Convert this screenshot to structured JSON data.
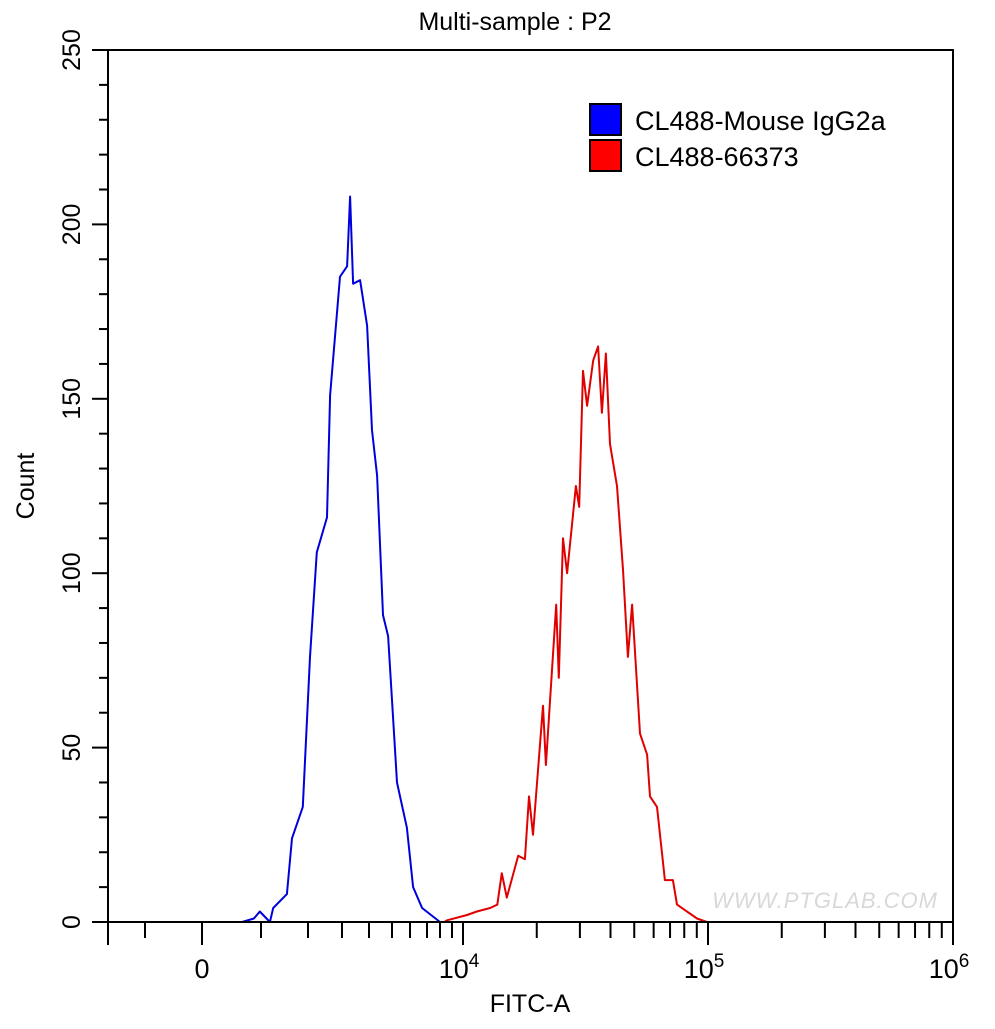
{
  "chart_data": {
    "type": "histogram",
    "title": "Multi-sample : P2",
    "xlabel": "FITC-A",
    "ylabel": "Count",
    "x_scale": "biexponential",
    "xlim": [
      -2000,
      1000000
    ],
    "ylim": [
      0,
      250
    ],
    "y_ticks": [
      0,
      50,
      100,
      150,
      200,
      250
    ],
    "x_tick_labels": [
      {
        "value": 0,
        "base": "0",
        "exp": ""
      },
      {
        "value": 10000,
        "base": "10",
        "exp": "4"
      },
      {
        "value": 100000,
        "base": "10",
        "exp": "5"
      },
      {
        "value": 1000000,
        "base": "10",
        "exp": "6"
      }
    ],
    "grid": false,
    "legend_position": "top-right",
    "series": [
      {
        "name": "CL488-Mouse IgG2a",
        "color": "#0000dd",
        "legend_color": "#0000ff",
        "points": [
          [
            880,
            1
          ],
          [
            980,
            3
          ],
          [
            1190,
            0
          ],
          [
            1260,
            4
          ],
          [
            1550,
            8
          ],
          [
            1660,
            24
          ],
          [
            1890,
            33
          ],
          [
            2060,
            76
          ],
          [
            2260,
            106
          ],
          [
            2560,
            116
          ],
          [
            2650,
            151
          ],
          [
            2940,
            185
          ],
          [
            3190,
            188
          ],
          [
            3300,
            208
          ],
          [
            3410,
            183
          ],
          [
            3670,
            184
          ],
          [
            3930,
            171
          ],
          [
            4130,
            141
          ],
          [
            4350,
            128
          ],
          [
            4610,
            88
          ],
          [
            4830,
            82
          ],
          [
            5280,
            40
          ],
          [
            5830,
            27
          ],
          [
            6180,
            10
          ],
          [
            6710,
            4
          ],
          [
            8000,
            0
          ]
        ]
      },
      {
        "name": "CL488-66373",
        "color": "#e00000",
        "legend_color": "#ff0000",
        "points": [
          [
            8580,
            0.5
          ],
          [
            10380,
            2
          ],
          [
            11400,
            3
          ],
          [
            12900,
            4
          ],
          [
            13800,
            5
          ],
          [
            14400,
            14
          ],
          [
            15100,
            7
          ],
          [
            16800,
            19
          ],
          [
            17900,
            18
          ],
          [
            18600,
            36
          ],
          [
            19300,
            25
          ],
          [
            21200,
            62
          ],
          [
            21800,
            45
          ],
          [
            24000,
            91
          ],
          [
            24600,
            70
          ],
          [
            25600,
            110
          ],
          [
            26600,
            100
          ],
          [
            28900,
            125
          ],
          [
            29800,
            119
          ],
          [
            30900,
            158
          ],
          [
            32100,
            148
          ],
          [
            34000,
            161
          ],
          [
            35600,
            165
          ],
          [
            36900,
            146
          ],
          [
            38300,
            163
          ],
          [
            39800,
            137
          ],
          [
            42500,
            125
          ],
          [
            45000,
            101
          ],
          [
            47100,
            76
          ],
          [
            49000,
            91
          ],
          [
            52800,
            54
          ],
          [
            56400,
            48
          ],
          [
            58000,
            36
          ],
          [
            61900,
            33
          ],
          [
            66700,
            12
          ],
          [
            71900,
            12
          ],
          [
            74700,
            5
          ],
          [
            90200,
            1
          ],
          [
            99000,
            0
          ]
        ]
      }
    ]
  },
  "watermark": "WWW.PTGLAB.COM"
}
